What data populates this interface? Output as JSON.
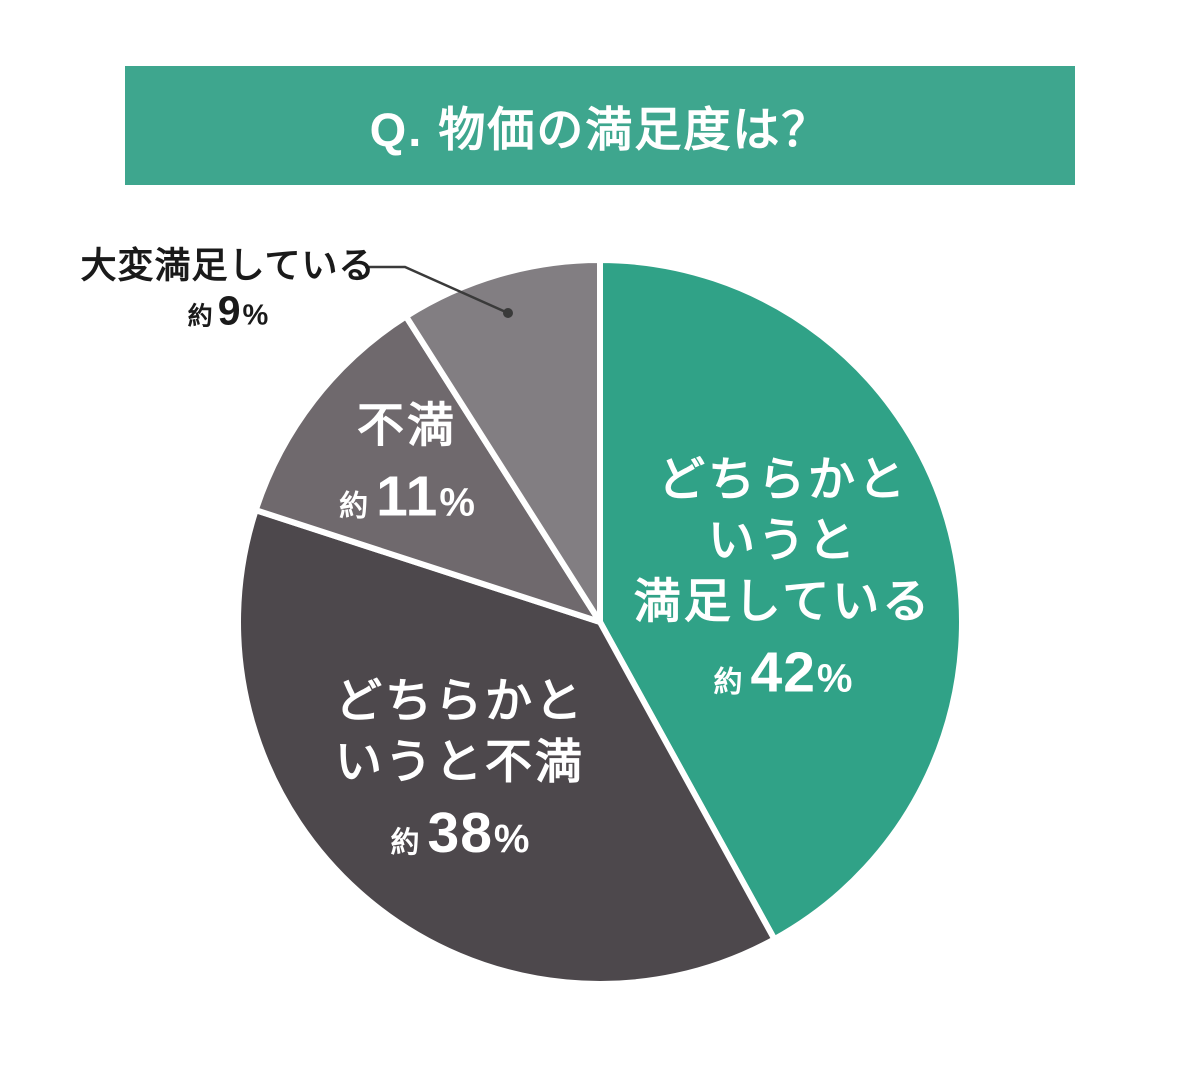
{
  "background_color": "#FFFFFF",
  "banner": {
    "title": "Q. 物価の満足度は？",
    "bg_color": "#3EA68E",
    "text_color": "#FFFFFF"
  },
  "chart_data": {
    "type": "pie",
    "title": "Q. 物価の満足度は？",
    "direction": "clockwise",
    "start_angle": "12-oclock",
    "unit": "percent",
    "separator_color": "#FFFFFF",
    "slices": [
      {
        "id": "somewhat-satisfied",
        "name": "どちらかというと満足している",
        "value": 42,
        "color": "#30A287",
        "label_lines": [
          "どちらかと",
          "いうと",
          "満足している"
        ],
        "approx": "約",
        "pct_number": "42",
        "pct_sign": "%",
        "label_placement": "inside"
      },
      {
        "id": "somewhat-dissatisfied",
        "name": "どちらかというと不満",
        "value": 38,
        "color": "#4D484C",
        "label_lines": [
          "どちらかと",
          "いうと不満"
        ],
        "approx": "約",
        "pct_number": "38",
        "pct_sign": "%",
        "label_placement": "inside"
      },
      {
        "id": "dissatisfied",
        "name": "不満",
        "value": 11,
        "color": "#6F696D",
        "label_lines": [
          "不満"
        ],
        "approx": "約",
        "pct_number": "11",
        "pct_sign": "%",
        "label_placement": "inside"
      },
      {
        "id": "very-satisfied",
        "name": "大変満足している",
        "value": 9,
        "color": "#827E82",
        "label_lines": [
          "大変満足している"
        ],
        "approx": "約",
        "pct_number": "9",
        "pct_sign": "%",
        "label_placement": "outside-callout"
      }
    ],
    "callout": {
      "color": "#3A3A3A"
    }
  }
}
